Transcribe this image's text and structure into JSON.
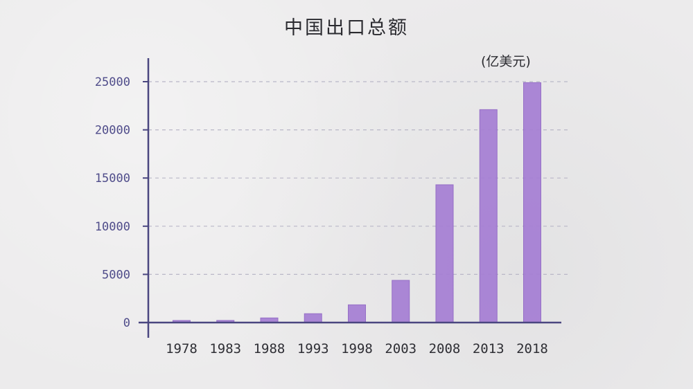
{
  "chart_data": {
    "type": "bar",
    "title": "中国出口总额",
    "unit_label": "(亿美元)",
    "categories": [
      "1978",
      "1983",
      "1988",
      "1993",
      "1998",
      "2003",
      "2008",
      "2013",
      "2018"
    ],
    "values": [
      100,
      220,
      480,
      920,
      1840,
      4380,
      14300,
      22100,
      24900
    ],
    "ylim": [
      0,
      25000
    ],
    "yticks": [
      "0",
      "5000",
      "10000",
      "15000",
      "20000",
      "25000"
    ],
    "grid": true,
    "legend": "none",
    "colors": {
      "bar": "#a57ed4",
      "bar_edge": "#8f65c4",
      "axis": "#4a4680",
      "grid": "#b9b7c7"
    }
  }
}
